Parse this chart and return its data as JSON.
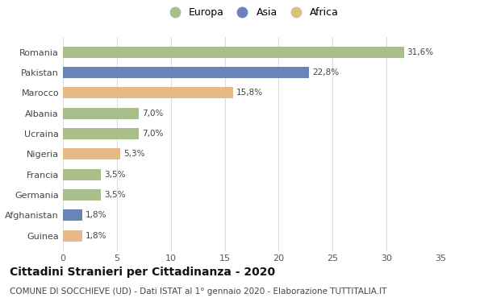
{
  "categories": [
    "Romania",
    "Pakistan",
    "Marocco",
    "Albania",
    "Ucraina",
    "Nigeria",
    "Francia",
    "Germania",
    "Afghanistan",
    "Guinea"
  ],
  "values": [
    31.6,
    22.8,
    15.8,
    7.0,
    7.0,
    5.3,
    3.5,
    3.5,
    1.8,
    1.8
  ],
  "labels": [
    "31,6%",
    "22,8%",
    "15,8%",
    "7,0%",
    "7,0%",
    "5,3%",
    "3,5%",
    "3,5%",
    "1,8%",
    "1,8%"
  ],
  "colors": [
    "#a8bf8a",
    "#6b84b8",
    "#e8b988",
    "#a8bf8a",
    "#a8bf8a",
    "#e8b988",
    "#a8bf8a",
    "#a8bf8a",
    "#6b84b8",
    "#e8b988"
  ],
  "legend_labels": [
    "Europa",
    "Asia",
    "Africa"
  ],
  "legend_colors": [
    "#a8bf8a",
    "#6b84b8",
    "#e8b988"
  ],
  "title": "Cittadini Stranieri per Cittadinanza - 2020",
  "subtitle": "COMUNE DI SOCCHIEVE (UD) - Dati ISTAT al 1° gennaio 2020 - Elaborazione TUTTITALIA.IT",
  "xlim": [
    0,
    35
  ],
  "xticks": [
    0,
    5,
    10,
    15,
    20,
    25,
    30,
    35
  ],
  "background_color": "#ffffff",
  "grid_color": "#dddddd",
  "bar_height": 0.55,
  "title_fontsize": 10,
  "subtitle_fontsize": 7.5,
  "label_fontsize": 7.5,
  "tick_fontsize": 8,
  "legend_fontsize": 9
}
